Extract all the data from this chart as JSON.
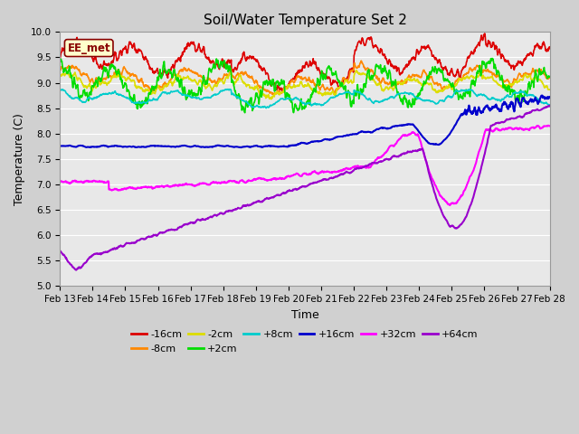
{
  "title": "Soil/Water Temperature Set 2",
  "xlabel": "Time",
  "ylabel": "Temperature (C)",
  "ylim": [
    5.0,
    10.0
  ],
  "yticks": [
    5.0,
    5.5,
    6.0,
    6.5,
    7.0,
    7.5,
    8.0,
    8.5,
    9.0,
    9.5,
    10.0
  ],
  "n_points": 1500,
  "fig_bg": "#d0d0d0",
  "plot_bg": "#e8e8e8",
  "grid_color": "#ffffff",
  "series": [
    {
      "label": "-16cm",
      "color": "#dd0000",
      "lw": 1.2
    },
    {
      "label": "-8cm",
      "color": "#ff8800",
      "lw": 1.2
    },
    {
      "label": "-2cm",
      "color": "#dddd00",
      "lw": 1.2
    },
    {
      "label": "+2cm",
      "color": "#00dd00",
      "lw": 1.2
    },
    {
      "label": "+8cm",
      "color": "#00cccc",
      "lw": 1.2
    },
    {
      "label": "+16cm",
      "color": "#0000cc",
      "lw": 1.5
    },
    {
      "label": "+32cm",
      "color": "#ff00ff",
      "lw": 1.5
    },
    {
      "label": "+64cm",
      "color": "#9900cc",
      "lw": 1.5
    }
  ],
  "annotation_text": "EE_met",
  "annotation_color": "#880000",
  "annotation_bg": "#ffffcc",
  "tick_fontsize": 7.5,
  "label_fontsize": 9,
  "title_fontsize": 11
}
